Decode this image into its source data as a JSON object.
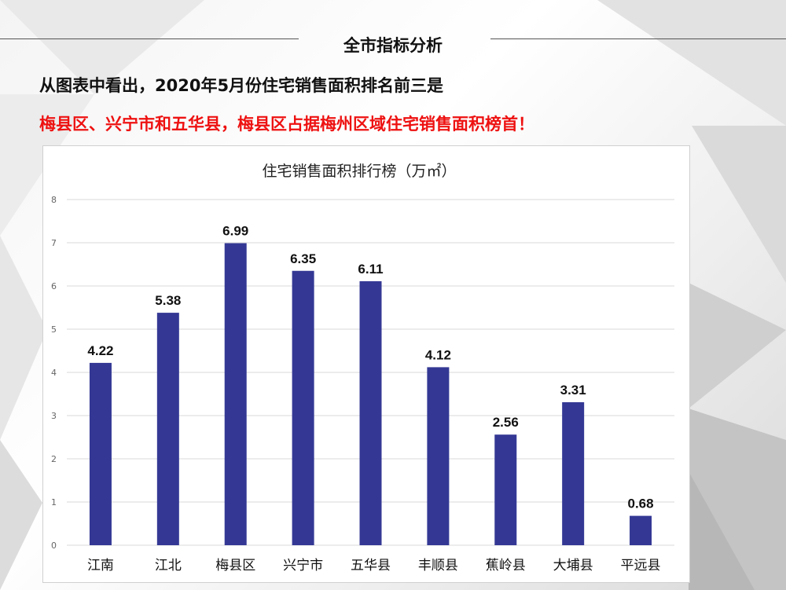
{
  "header": {
    "title": "全市指标分析"
  },
  "text": {
    "line1": "从图表中看出，2020年5月份住宅销售面积排名前三是",
    "line2": "梅县区、兴宁市和五华县，梅县区占据梅州区域住宅销售面积榜首！"
  },
  "colors": {
    "bar": "#343894",
    "highlight": "#ee1111",
    "grid": "#d9d9d9"
  },
  "chart_data": {
    "type": "bar",
    "title": "住宅销售面积排行榜（万㎡）",
    "categories": [
      "江南",
      "江北",
      "梅县区",
      "兴宁市",
      "五华县",
      "丰顺县",
      "蕉岭县",
      "大埔县",
      "平远县"
    ],
    "values": [
      4.22,
      5.38,
      6.99,
      6.35,
      6.11,
      4.12,
      2.56,
      3.31,
      0.68
    ],
    "value_labels": [
      "4.22",
      "5.38",
      "6.99",
      "6.35",
      "6.11",
      "4.12",
      "2.56",
      "3.31",
      "0.68"
    ],
    "ylim": [
      0,
      8
    ],
    "yticks": [
      "0",
      "1",
      "2",
      "3",
      "4",
      "5",
      "6",
      "7",
      "8"
    ],
    "grid": true,
    "legend": "none"
  }
}
